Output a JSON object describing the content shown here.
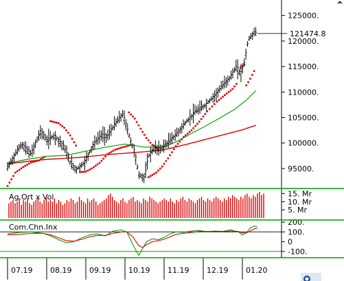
{
  "chart_data": [
    {
      "type": "candlestick",
      "title": "",
      "series": [
        {
          "name": "price",
          "color": "#000000"
        },
        {
          "name": "parabolic_sar",
          "color": "#dd0000"
        },
        {
          "name": "moving_average_short",
          "color": "#00a000"
        },
        {
          "name": "moving_average_long",
          "color": "#dd0000"
        }
      ],
      "y_tick_labels": [
        "125000.",
        "120000.",
        "115000.",
        "110000.",
        "105000.",
        "100000.",
        "95000."
      ],
      "ylim": [
        91500,
        127500
      ],
      "last_price_label": "121474.8",
      "last_price": 121474.8,
      "x_tick_labels": [
        "07.19",
        "08.19",
        "09.19",
        "10.19",
        "11.19",
        "12.19",
        "01.20"
      ],
      "price_path": [
        [
          0,
          95200
        ],
        [
          0.35,
          99800
        ],
        [
          0.6,
          97800
        ],
        [
          0.85,
          102400
        ],
        [
          1.0,
          100500
        ],
        [
          1.2,
          101500
        ],
        [
          1.45,
          99200
        ],
        [
          1.6,
          96200
        ],
        [
          1.75,
          94800
        ],
        [
          1.95,
          96000
        ],
        [
          2.2,
          99800
        ],
        [
          2.4,
          101600
        ],
        [
          2.55,
          101300
        ],
        [
          2.75,
          103800
        ],
        [
          2.95,
          105700
        ],
        [
          3.05,
          103000
        ],
        [
          3.15,
          100400
        ],
        [
          3.25,
          98200
        ],
        [
          3.35,
          93800
        ],
        [
          3.5,
          93200
        ],
        [
          3.6,
          97400
        ],
        [
          3.75,
          99000
        ],
        [
          3.9,
          98800
        ],
        [
          4.05,
          99800
        ],
        [
          4.3,
          101600
        ],
        [
          4.55,
          104000
        ],
        [
          4.8,
          106200
        ],
        [
          5.05,
          107400
        ],
        [
          5.3,
          109400
        ],
        [
          5.5,
          111300
        ],
        [
          5.7,
          113000
        ],
        [
          5.85,
          115000
        ],
        [
          5.95,
          113500
        ],
        [
          6.05,
          115800
        ],
        [
          6.15,
          120200
        ],
        [
          6.3,
          121700
        ],
        [
          6.38,
          121474.8
        ]
      ],
      "sar_segments": [
        [
          [
            0,
            91600
          ],
          [
            0.2,
            94200
          ],
          [
            0.4,
            95300
          ],
          [
            0.6,
            96200
          ],
          [
            0.8,
            96600
          ],
          [
            0.95,
            97300
          ]
        ],
        [
          [
            1.1,
            104300
          ],
          [
            1.3,
            103900
          ],
          [
            1.45,
            103000
          ],
          [
            1.6,
            101500
          ],
          [
            1.75,
            99500
          ]
        ],
        [
          [
            1.85,
            94300
          ],
          [
            2.0,
            94400
          ],
          [
            2.15,
            95000
          ],
          [
            2.35,
            96100
          ],
          [
            2.55,
            97800
          ],
          [
            2.75,
            98700
          ],
          [
            2.95,
            99200
          ],
          [
            3.15,
            99600
          ]
        ],
        [
          [
            3.1,
            106000
          ],
          [
            3.25,
            104800
          ],
          [
            3.4,
            102800
          ],
          [
            3.55,
            101000
          ],
          [
            3.7,
            99600
          ],
          [
            3.85,
            98800
          ]
        ],
        [
          [
            3.6,
            93300
          ],
          [
            3.8,
            94200
          ],
          [
            3.95,
            95400
          ],
          [
            4.1,
            97000
          ],
          [
            4.3,
            99400
          ],
          [
            4.5,
            101200
          ],
          [
            4.7,
            102500
          ],
          [
            4.9,
            104200
          ],
          [
            5.1,
            106200
          ],
          [
            5.35,
            108100
          ],
          [
            5.55,
            109400
          ],
          [
            5.75,
            110600
          ],
          [
            5.85,
            111600
          ]
        ],
        [
          [
            5.95,
            114800
          ],
          [
            6.05,
            115300
          ]
        ],
        [
          [
            6.1,
            111300
          ],
          [
            6.2,
            112600
          ],
          [
            6.3,
            114100
          ]
        ]
      ],
      "ma_short": [
        [
          0,
          96000
        ],
        [
          0.5,
          96800
        ],
        [
          1.0,
          97400
        ],
        [
          1.5,
          97600
        ],
        [
          2.0,
          98400
        ],
        [
          2.5,
          99200
        ],
        [
          3.0,
          99800
        ],
        [
          3.5,
          99200
        ],
        [
          4.0,
          99300
        ],
        [
          4.3,
          100200
        ],
        [
          4.7,
          101900
        ],
        [
          5.0,
          103100
        ],
        [
          5.4,
          104800
        ],
        [
          5.8,
          106600
        ],
        [
          6.1,
          108400
        ],
        [
          6.35,
          110300
        ]
      ],
      "ma_long": [
        [
          0,
          95900
        ],
        [
          0.5,
          96400
        ],
        [
          1.0,
          96800
        ],
        [
          1.5,
          97000
        ],
        [
          2.0,
          97300
        ],
        [
          2.5,
          97700
        ],
        [
          3.0,
          98000
        ],
        [
          3.5,
          98300
        ],
        [
          4.0,
          98700
        ],
        [
          4.5,
          99600
        ],
        [
          5.0,
          100600
        ],
        [
          5.5,
          101600
        ],
        [
          6.0,
          102600
        ],
        [
          6.35,
          103500
        ]
      ]
    },
    {
      "type": "bar",
      "title": "Ag.Ort x Vol",
      "y_tick_labels": [
        "15. Mr",
        "10. Mr",
        "5. Mr"
      ],
      "ylim": [
        0,
        16
      ],
      "bar_color": "#dd0000",
      "volume_millions": [
        9,
        10,
        11,
        9,
        10,
        12,
        8,
        11,
        10,
        12,
        9,
        8,
        10,
        11,
        12,
        10,
        9,
        11,
        13,
        10,
        11,
        10,
        12,
        9,
        11,
        10,
        8,
        9,
        11,
        10,
        12,
        11,
        9,
        10,
        13,
        11,
        10,
        9,
        12,
        10,
        11,
        12,
        10,
        8,
        9,
        10,
        11,
        12,
        14,
        15,
        13,
        11,
        10,
        9,
        11,
        12,
        10,
        9,
        11,
        12,
        13,
        10,
        11,
        10,
        9,
        12,
        11,
        10,
        13,
        12,
        11,
        10,
        9,
        10,
        11,
        12,
        11,
        10,
        12,
        10,
        9,
        11,
        10,
        12,
        13,
        11,
        10,
        12,
        11,
        10,
        9,
        11,
        12,
        13,
        11,
        10,
        12,
        11,
        10,
        12,
        13,
        12,
        11,
        10,
        12,
        11,
        13,
        12,
        14,
        13,
        12,
        11,
        13,
        12,
        14,
        15,
        13,
        12,
        14,
        13,
        15,
        16,
        14,
        15
      ]
    },
    {
      "type": "line",
      "title": "Com.Chn.Inx",
      "y_tick_labels": [
        "200.",
        "100.",
        "0",
        "-100."
      ],
      "ylim": [
        -150,
        215
      ],
      "series": [
        {
          "name": "cci",
          "color": "#00a000",
          "x": [
            0,
            0.3,
            0.6,
            0.9,
            1.1,
            1.3,
            1.5,
            1.7,
            1.9,
            2.1,
            2.3,
            2.5,
            2.7,
            2.9,
            3.05,
            3.2,
            3.35,
            3.45,
            3.55,
            3.7,
            3.85,
            4.0,
            4.15,
            4.3,
            4.5,
            4.7,
            4.9,
            5.1,
            5.3,
            5.5,
            5.7,
            5.9,
            6.0,
            6.1,
            6.2,
            6.3,
            6.38
          ],
          "y": [
            80,
            95,
            100,
            85,
            60,
            20,
            -10,
            0,
            40,
            70,
            80,
            60,
            110,
            120,
            100,
            -30,
            -140,
            -70,
            0,
            30,
            20,
            45,
            80,
            100,
            95,
            110,
            115,
            100,
            110,
            105,
            120,
            100,
            70,
            90,
            140,
            160,
            155
          ]
        },
        {
          "name": "cci_signal",
          "color": "#dd0000",
          "x": [
            0,
            0.3,
            0.6,
            0.9,
            1.1,
            1.3,
            1.5,
            1.7,
            1.9,
            2.1,
            2.3,
            2.5,
            2.7,
            2.9,
            3.05,
            3.2,
            3.35,
            3.45,
            3.55,
            3.7,
            3.85,
            4.0,
            4.15,
            4.3,
            4.5,
            4.7,
            4.9,
            5.1,
            5.3,
            5.5,
            5.7,
            5.9,
            6.0,
            6.1,
            6.2,
            6.3,
            6.38
          ],
          "y": [
            70,
            75,
            85,
            85,
            70,
            40,
            10,
            5,
            25,
            50,
            65,
            65,
            85,
            100,
            100,
            50,
            -40,
            -60,
            -30,
            0,
            10,
            25,
            50,
            75,
            85,
            95,
            105,
            105,
            105,
            105,
            110,
            105,
            90,
            90,
            110,
            130,
            140
          ]
        }
      ]
    }
  ]
}
